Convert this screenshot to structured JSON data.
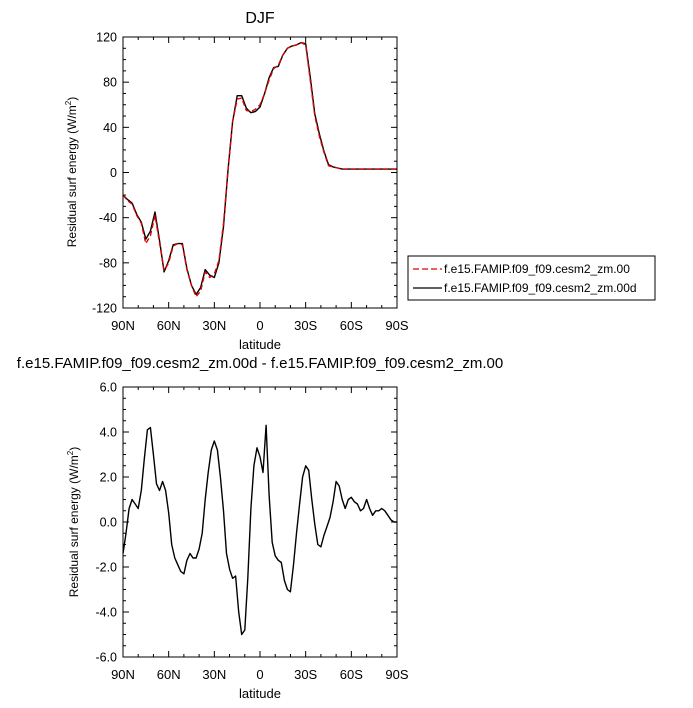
{
  "chart_data": [
    {
      "type": "line",
      "title": "DJF",
      "xlabel": "latitude",
      "ylabel": "Residual surf energy (W/m",
      "ylabel_sup": "2",
      "ylabel_close": ")",
      "xlim": [
        90,
        -90
      ],
      "ylim": [
        -120,
        120
      ],
      "xticks": [
        90,
        60,
        30,
        0,
        -30,
        -60,
        -90
      ],
      "xtick_labels": [
        "90N",
        "60N",
        "30N",
        "0",
        "30S",
        "60S",
        "90S"
      ],
      "yticks": [
        -120,
        -80,
        -40,
        0,
        40,
        80,
        120
      ],
      "ytick_labels": [
        "-120",
        "-80",
        "-40",
        "0",
        "40",
        "80",
        "120"
      ],
      "legend_position": "right",
      "series": [
        {
          "name": "f.e15.FAMIP.f09_f09.cesm2_zm.00",
          "color": "#e00000",
          "dash": "dashed",
          "x": [
            90,
            87,
            84,
            81,
            78,
            75,
            72,
            69,
            66,
            63,
            60,
            57,
            54,
            51,
            48,
            45,
            42,
            39,
            36,
            33,
            30,
            27,
            24,
            21,
            18,
            15,
            12,
            9,
            6,
            3,
            0,
            -3,
            -6,
            -9,
            -12,
            -15,
            -18,
            -21,
            -24,
            -27,
            -30,
            -33,
            -36,
            -39,
            -42,
            -45,
            -48,
            -51,
            -54,
            -57,
            -60,
            -63,
            -66,
            -69,
            -72,
            -75,
            -78,
            -81,
            -84,
            -87,
            -90
          ],
          "y": [
            -20,
            -25,
            -28,
            -38,
            -45,
            -63,
            -56,
            -38,
            -62,
            -87,
            -80,
            -65,
            -63,
            -64,
            -86,
            -100,
            -110,
            -105,
            -88,
            -93,
            -90,
            -78,
            -45,
            2,
            45,
            65,
            66,
            55,
            54,
            56,
            60,
            70,
            82,
            92,
            95,
            104,
            110,
            112,
            113,
            115,
            113,
            82,
            50,
            32,
            18,
            6,
            5,
            4,
            3,
            3,
            3,
            3,
            3,
            3,
            3,
            3,
            3,
            3,
            3,
            3,
            3
          ]
        },
        {
          "name": "f.e15.FAMIP.f09_f09.cesm2_zm.00d",
          "color": "#000000",
          "dash": "solid",
          "x": [
            90,
            87,
            84,
            81,
            78,
            75,
            72,
            69,
            66,
            63,
            60,
            57,
            54,
            51,
            48,
            45,
            42,
            39,
            36,
            33,
            30,
            27,
            24,
            21,
            18,
            15,
            12,
            9,
            6,
            3,
            0,
            -3,
            -6,
            -9,
            -12,
            -15,
            -18,
            -21,
            -24,
            -27,
            -30,
            -33,
            -36,
            -39,
            -42,
            -45,
            -48,
            -51,
            -54,
            -57,
            -60,
            -63,
            -66,
            -69,
            -72,
            -75,
            -78,
            -81,
            -84,
            -87,
            -90
          ],
          "y": [
            -20,
            -24,
            -27,
            -37,
            -44,
            -59,
            -52,
            -35,
            -60,
            -88,
            -78,
            -64,
            -63,
            -63,
            -85,
            -100,
            -108,
            -102,
            -86,
            -91,
            -93,
            -80,
            -48,
            2,
            45,
            68,
            68,
            57,
            53,
            54,
            58,
            70,
            84,
            93,
            94,
            104,
            110,
            112,
            113,
            115,
            114,
            85,
            52,
            34,
            19,
            7,
            5,
            4,
            3,
            3,
            3,
            3,
            3,
            3,
            3,
            3,
            3,
            3,
            3,
            3,
            3
          ]
        }
      ]
    },
    {
      "type": "line",
      "title": "f.e15.FAMIP.f09_f09.cesm2_zm.00d - f.e15.FAMIP.f09_f09.cesm2_zm.00",
      "xlabel": "latitude",
      "ylabel": "Residual surf energy (W/m",
      "ylabel_sup": "2",
      "ylabel_close": ")",
      "xlim": [
        90,
        -90
      ],
      "ylim": [
        -6,
        6
      ],
      "xticks": [
        90,
        60,
        30,
        0,
        -30,
        -60,
        -90
      ],
      "xtick_labels": [
        "90N",
        "60N",
        "30N",
        "0",
        "30S",
        "60S",
        "90S"
      ],
      "yticks": [
        -6,
        -4,
        -2,
        0,
        2,
        4,
        6
      ],
      "ytick_labels": [
        "-6.0",
        "-4.0",
        "-2.0",
        "0.0",
        "2.0",
        "4.0",
        "6.0"
      ],
      "series": [
        {
          "color": "#000000",
          "x": [
            90,
            88,
            86,
            84,
            82,
            80,
            78,
            76,
            74,
            72,
            70,
            68,
            66,
            64,
            62,
            60,
            58,
            56,
            54,
            52,
            50,
            48,
            46,
            44,
            42,
            40,
            38,
            36,
            34,
            32,
            30,
            28,
            26,
            24,
            22,
            20,
            18,
            16,
            14,
            12,
            10,
            8,
            6,
            4,
            2,
            0,
            -2,
            -4,
            -6,
            -8,
            -10,
            -12,
            -14,
            -16,
            -18,
            -20,
            -22,
            -24,
            -26,
            -28,
            -30,
            -32,
            -34,
            -36,
            -38,
            -40,
            -42,
            -44,
            -46,
            -48,
            -50,
            -52,
            -54,
            -56,
            -58,
            -60,
            -62,
            -64,
            -66,
            -68,
            -70,
            -72,
            -74,
            -76,
            -78,
            -80,
            -82,
            -84,
            -86,
            -88,
            -90
          ],
          "y": [
            -1.4,
            -0.5,
            0.6,
            1.0,
            0.8,
            0.6,
            1.4,
            2.8,
            4.1,
            4.2,
            3.0,
            1.7,
            1.4,
            1.8,
            1.4,
            0.4,
            -1.0,
            -1.6,
            -1.9,
            -2.2,
            -2.3,
            -1.7,
            -1.4,
            -1.6,
            -1.6,
            -1.2,
            -0.5,
            1.0,
            2.2,
            3.2,
            3.6,
            3.2,
            2.0,
            0.5,
            -1.4,
            -2.1,
            -2.5,
            -2.4,
            -4.0,
            -5.0,
            -4.8,
            -2.5,
            0.6,
            2.5,
            3.3,
            2.9,
            2.2,
            4.3,
            1.2,
            -0.9,
            -1.5,
            -1.7,
            -1.8,
            -2.6,
            -3.0,
            -3.1,
            -1.9,
            -0.5,
            0.8,
            2.0,
            2.5,
            2.3,
            1.0,
            -0.1,
            -1.0,
            -1.1,
            -0.6,
            -0.2,
            0.2,
            0.9,
            1.8,
            1.6,
            1.0,
            0.6,
            1.0,
            1.1,
            0.9,
            0.8,
            0.5,
            0.6,
            1.0,
            0.6,
            0.3,
            0.5,
            0.5,
            0.6,
            0.5,
            0.3,
            0.1,
            0.0,
            0.0
          ]
        }
      ]
    }
  ]
}
